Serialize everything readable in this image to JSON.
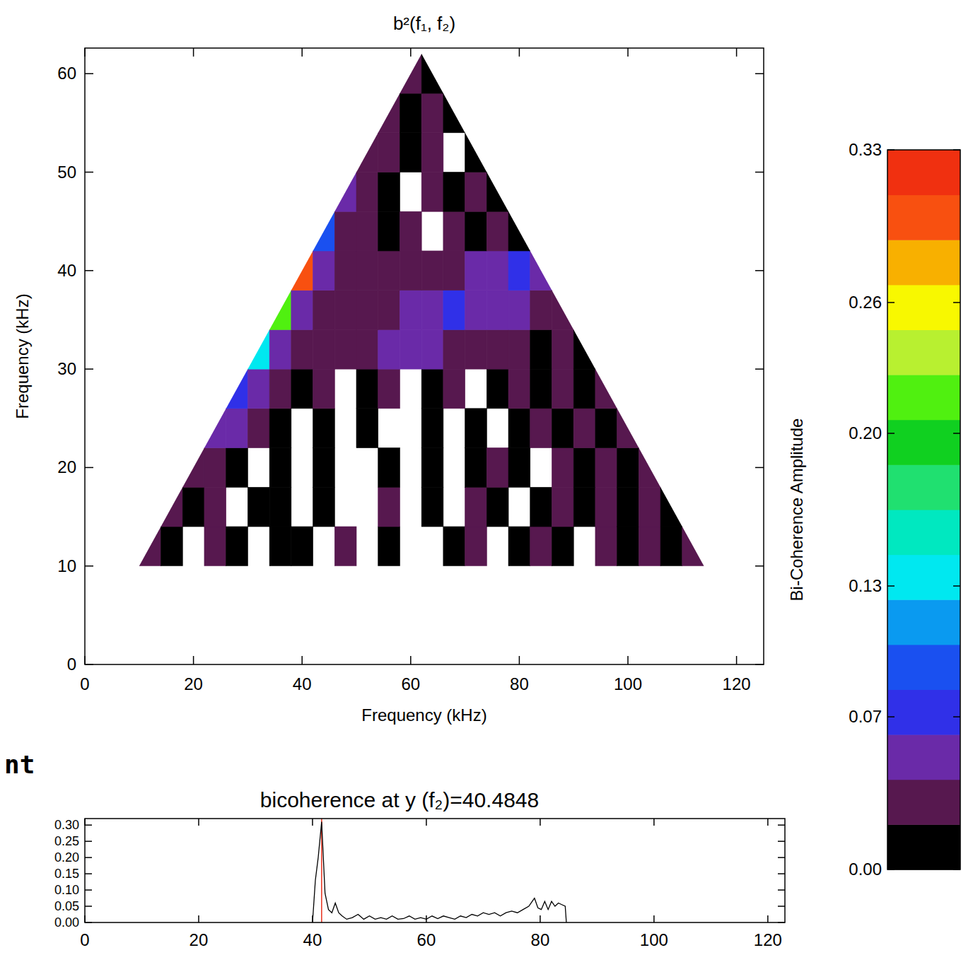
{
  "chart_data": [
    {
      "type": "heatmap",
      "title": "b²(f₁, f₂)",
      "x_label": "Frequency (kHz)",
      "y_label": "Frequency (kHz)",
      "xlim": [
        0,
        125
      ],
      "ylim": [
        0,
        62.6
      ],
      "xticks": [
        0,
        20,
        40,
        60,
        80,
        100,
        120
      ],
      "yticks": [
        0,
        10,
        20,
        30,
        40,
        50,
        60
      ],
      "x": [
        12,
        16,
        20,
        24,
        28,
        32,
        36,
        40,
        44,
        48,
        52,
        56,
        60,
        64,
        68,
        72,
        76,
        80,
        84,
        88,
        92,
        96,
        100,
        104,
        108,
        112
      ],
      "y": [
        12,
        16,
        20,
        24,
        28,
        32,
        36,
        40,
        44,
        48,
        52,
        56,
        60
      ],
      "z": [
        [
          0.03,
          0.02,
          null,
          0.03,
          0.02,
          null,
          0.01,
          0.02,
          null,
          0.03,
          null,
          0.02,
          null,
          null,
          0.02,
          0.03,
          null,
          0.02,
          0.03,
          0.02,
          null,
          0.03,
          0.02,
          0.03,
          0.02,
          0.04
        ],
        [
          null,
          0.03,
          0.02,
          0.03,
          null,
          0.02,
          0.01,
          null,
          0.02,
          null,
          null,
          0.03,
          null,
          0.02,
          null,
          0.03,
          0.02,
          null,
          0.02,
          0.03,
          0.02,
          0.03,
          0.02,
          0.03,
          0.02,
          null
        ],
        [
          null,
          null,
          0.04,
          0.03,
          0.02,
          null,
          0.02,
          null,
          0.01,
          null,
          null,
          0.02,
          null,
          0.01,
          null,
          0.02,
          0.03,
          0.02,
          null,
          0.03,
          0.02,
          0.03,
          0.02,
          0.03,
          null,
          null
        ],
        [
          null,
          null,
          null,
          0.06,
          0.05,
          0.03,
          0.02,
          null,
          0.02,
          null,
          0.01,
          null,
          null,
          0.02,
          null,
          0.02,
          null,
          0.02,
          0.03,
          0.02,
          0.03,
          0.02,
          0.03,
          null,
          null,
          null
        ],
        [
          null,
          null,
          null,
          null,
          0.08,
          0.05,
          0.04,
          0.02,
          0.03,
          null,
          0.02,
          0.03,
          null,
          0.02,
          0.03,
          null,
          0.02,
          0.03,
          0.02,
          0.03,
          0.02,
          0.03,
          null,
          null,
          null,
          null
        ],
        [
          null,
          null,
          null,
          null,
          null,
          0.13,
          0.05,
          0.04,
          0.03,
          0.03,
          0.04,
          0.05,
          0.05,
          0.05,
          0.04,
          0.04,
          0.03,
          0.03,
          0.02,
          0.03,
          0.02,
          null,
          null,
          null,
          null,
          null
        ],
        [
          null,
          null,
          null,
          null,
          null,
          null,
          0.22,
          0.05,
          0.04,
          0.03,
          0.03,
          0.04,
          0.05,
          0.06,
          0.07,
          0.06,
          0.05,
          0.05,
          0.04,
          0.03,
          null,
          null,
          null,
          null,
          null,
          null
        ],
        [
          null,
          null,
          null,
          null,
          null,
          null,
          null,
          0.3,
          0.05,
          0.04,
          0.03,
          0.03,
          0.03,
          0.04,
          0.04,
          0.05,
          0.06,
          0.07,
          0.06,
          null,
          null,
          null,
          null,
          null,
          null,
          null
        ],
        [
          null,
          null,
          null,
          null,
          null,
          null,
          null,
          null,
          0.09,
          0.04,
          0.03,
          0.02,
          0.03,
          null,
          0.03,
          0.02,
          0.03,
          0.02,
          null,
          null,
          null,
          null,
          null,
          null,
          null,
          null
        ],
        [
          null,
          null,
          null,
          null,
          null,
          null,
          null,
          null,
          null,
          0.06,
          0.03,
          0.02,
          null,
          0.03,
          0.02,
          0.03,
          0.02,
          null,
          null,
          null,
          null,
          null,
          null,
          null,
          null,
          null
        ],
        [
          null,
          null,
          null,
          null,
          null,
          null,
          null,
          null,
          null,
          null,
          0.04,
          0.03,
          0.02,
          0.03,
          null,
          0.02,
          null,
          null,
          null,
          null,
          null,
          null,
          null,
          null,
          null,
          null
        ],
        [
          null,
          null,
          null,
          null,
          null,
          null,
          null,
          null,
          null,
          null,
          null,
          0.03,
          0.02,
          0.03,
          0.02,
          null,
          null,
          null,
          null,
          null,
          null,
          null,
          null,
          null,
          null,
          null
        ],
        [
          null,
          null,
          null,
          null,
          null,
          null,
          null,
          null,
          null,
          null,
          null,
          null,
          0.03,
          0.02,
          null,
          null,
          null,
          null,
          null,
          null,
          null,
          null,
          null,
          null,
          null,
          null
        ]
      ],
      "colorbar_label": "Bi-Coherence Amplitude",
      "colorbar_range": [
        0,
        0.33
      ],
      "colorbar_ticks": [
        {
          "value": 0,
          "label": "0.00"
        },
        0.07,
        0.13,
        {
          "value": 0.2,
          "label": "0.20"
        },
        0.26,
        0.33
      ],
      "colors": [
        "#000000",
        "#57184f",
        "#6a2aa8",
        "#3030e8",
        "#1a50f0",
        "#0a9af0",
        "#00e8f0",
        "#00e8c0",
        "#20e070",
        "#10d020",
        "#50f010",
        "#b8f030",
        "#f8f800",
        "#f8b000",
        "#f85010",
        "#f03010"
      ]
    },
    {
      "type": "line",
      "title": "bicoherence at y (f₂)=40.4848",
      "xlim": [
        0,
        123
      ],
      "ylim": [
        0,
        0.32
      ],
      "xticks": [
        0,
        20,
        40,
        60,
        80,
        100,
        120
      ],
      "yticks": [
        {
          "value": 0,
          "label": "0.00"
        },
        0.05,
        {
          "value": 0.1,
          "label": "0.10"
        },
        0.15,
        {
          "value": 0.2,
          "label": "0.20"
        },
        0.25,
        {
          "value": 0.3,
          "label": "0.30"
        }
      ],
      "color": "#000000",
      "highlight_x": 41.6,
      "x": [
        40.0,
        40.5,
        41.0,
        41.6,
        42.2,
        42.8,
        43.4,
        44.0,
        44.6,
        45.2,
        46,
        47,
        48,
        49,
        50,
        51,
        52,
        53,
        54,
        55,
        56,
        57,
        58,
        59,
        60,
        61,
        62,
        63,
        64,
        65,
        66,
        67,
        68,
        69,
        70,
        71,
        72,
        73,
        74,
        75,
        76,
        77,
        78,
        79,
        79.6,
        80.2,
        80.8,
        81.4,
        82,
        82.6,
        83.2,
        83.8,
        84.4,
        84.6
      ],
      "values": [
        0,
        0.13,
        0.2,
        0.31,
        0.09,
        0.04,
        0.03,
        0.06,
        0.03,
        0.02,
        0.01,
        0.015,
        0.025,
        0.01,
        0.02,
        0.01,
        0.015,
        0.01,
        0.02,
        0.01,
        0.012,
        0.02,
        0.01,
        0.015,
        0.01,
        0.02,
        0.012,
        0.02,
        0.015,
        0.01,
        0.02,
        0.015,
        0.025,
        0.02,
        0.03,
        0.025,
        0.03,
        0.02,
        0.03,
        0.035,
        0.03,
        0.04,
        0.05,
        0.075,
        0.045,
        0.04,
        0.065,
        0.04,
        0.065,
        0.05,
        0.06,
        0.055,
        0.05,
        0
      ]
    }
  ],
  "annotations": [
    "nt"
  ]
}
